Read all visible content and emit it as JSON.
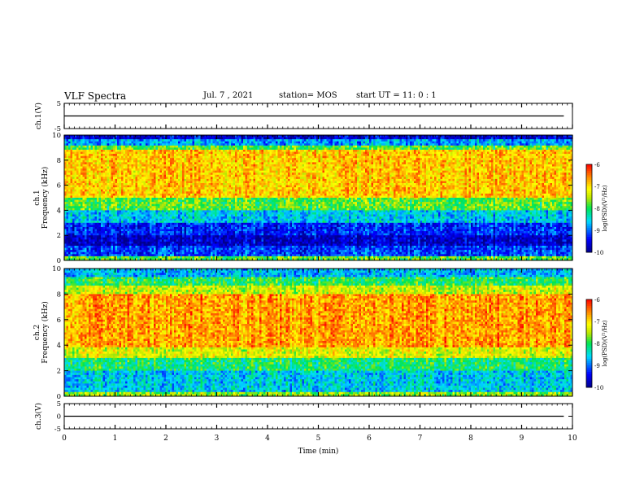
{
  "header": {
    "title": "VLF Spectra",
    "date": "Jul. 7 , 2021",
    "station": "station= MOS",
    "start": "start UT =  11: 0  : 1"
  },
  "chart_data": [
    {
      "type": "line",
      "panel": "ch1-waveform",
      "ylabel": "ch.1(V)",
      "ylim": [
        -5,
        5
      ],
      "yticks": [
        "5",
        "-5"
      ],
      "xlim": [
        0,
        10
      ],
      "series": [
        {
          "x": [
            0,
            9.83
          ],
          "values": [
            0,
            0
          ]
        }
      ]
    },
    {
      "type": "heatmap",
      "panel": "ch1-spectrogram",
      "ylabel": "ch.1 Frequency (kHz)",
      "ylim": [
        0,
        10
      ],
      "yticks": [
        "0",
        "2",
        "4",
        "6",
        "8",
        "10"
      ],
      "xlim": [
        0,
        10
      ],
      "colorbar": {
        "label": "log(PSD)(V²/Hz)",
        "range": [
          -10,
          -6
        ],
        "ticks": [
          "-6",
          "-7",
          "-8",
          "-9",
          "-10"
        ]
      },
      "bands": [
        {
          "f": [
            0,
            0.4
          ],
          "level": -7.8
        },
        {
          "f": [
            0.4,
            1.2
          ],
          "level": -9.2
        },
        {
          "f": [
            1.2,
            2.0
          ],
          "level": -9.7
        },
        {
          "f": [
            2.0,
            3.0
          ],
          "level": -9.3
        },
        {
          "f": [
            3.0,
            4.0
          ],
          "level": -8.6
        },
        {
          "f": [
            4.0,
            5.0
          ],
          "level": -7.8
        },
        {
          "f": [
            5.0,
            8.8
          ],
          "level": -6.9
        },
        {
          "f": [
            8.8,
            9.2
          ],
          "level": -7.8
        },
        {
          "f": [
            9.2,
            9.6
          ],
          "level": -8.8
        },
        {
          "f": [
            9.6,
            10.0
          ],
          "level": -9.6
        }
      ]
    },
    {
      "type": "heatmap",
      "panel": "ch2-spectrogram",
      "ylabel": "ch.2 Frequency (kHz)",
      "ylim": [
        0,
        10
      ],
      "yticks": [
        "0",
        "2",
        "4",
        "6",
        "8",
        "10"
      ],
      "xlim": [
        0,
        10
      ],
      "colorbar": {
        "label": "log(PSD)(V²/Hz)",
        "range": [
          -10,
          -6
        ],
        "ticks": [
          "-6",
          "-7",
          "-8",
          "-9",
          "-10"
        ]
      },
      "bands": [
        {
          "f": [
            0,
            0.3
          ],
          "level": -7.6
        },
        {
          "f": [
            0.3,
            2.0
          ],
          "level": -8.6
        },
        {
          "f": [
            2.0,
            3.0
          ],
          "level": -8.1
        },
        {
          "f": [
            3.0,
            3.8
          ],
          "level": -7.3
        },
        {
          "f": [
            3.8,
            8.0
          ],
          "level": -6.7
        },
        {
          "f": [
            8.0,
            8.6
          ],
          "level": -7.4
        },
        {
          "f": [
            8.6,
            9.3
          ],
          "level": -8.0
        },
        {
          "f": [
            9.3,
            10.0
          ],
          "level": -8.7
        }
      ]
    },
    {
      "type": "line",
      "panel": "ch3-waveform",
      "ylabel": "ch.3(V)",
      "ylim": [
        -5,
        5
      ],
      "yticks": [
        "5",
        "0",
        "-5"
      ],
      "xlim": [
        0,
        10
      ],
      "xlabel": "Time (min)",
      "xticks": [
        "0",
        "1",
        "2",
        "3",
        "4",
        "5",
        "6",
        "7",
        "8",
        "9",
        "10"
      ],
      "series": [
        {
          "x": [
            0,
            9.83
          ],
          "values": [
            0,
            0
          ]
        }
      ]
    }
  ]
}
